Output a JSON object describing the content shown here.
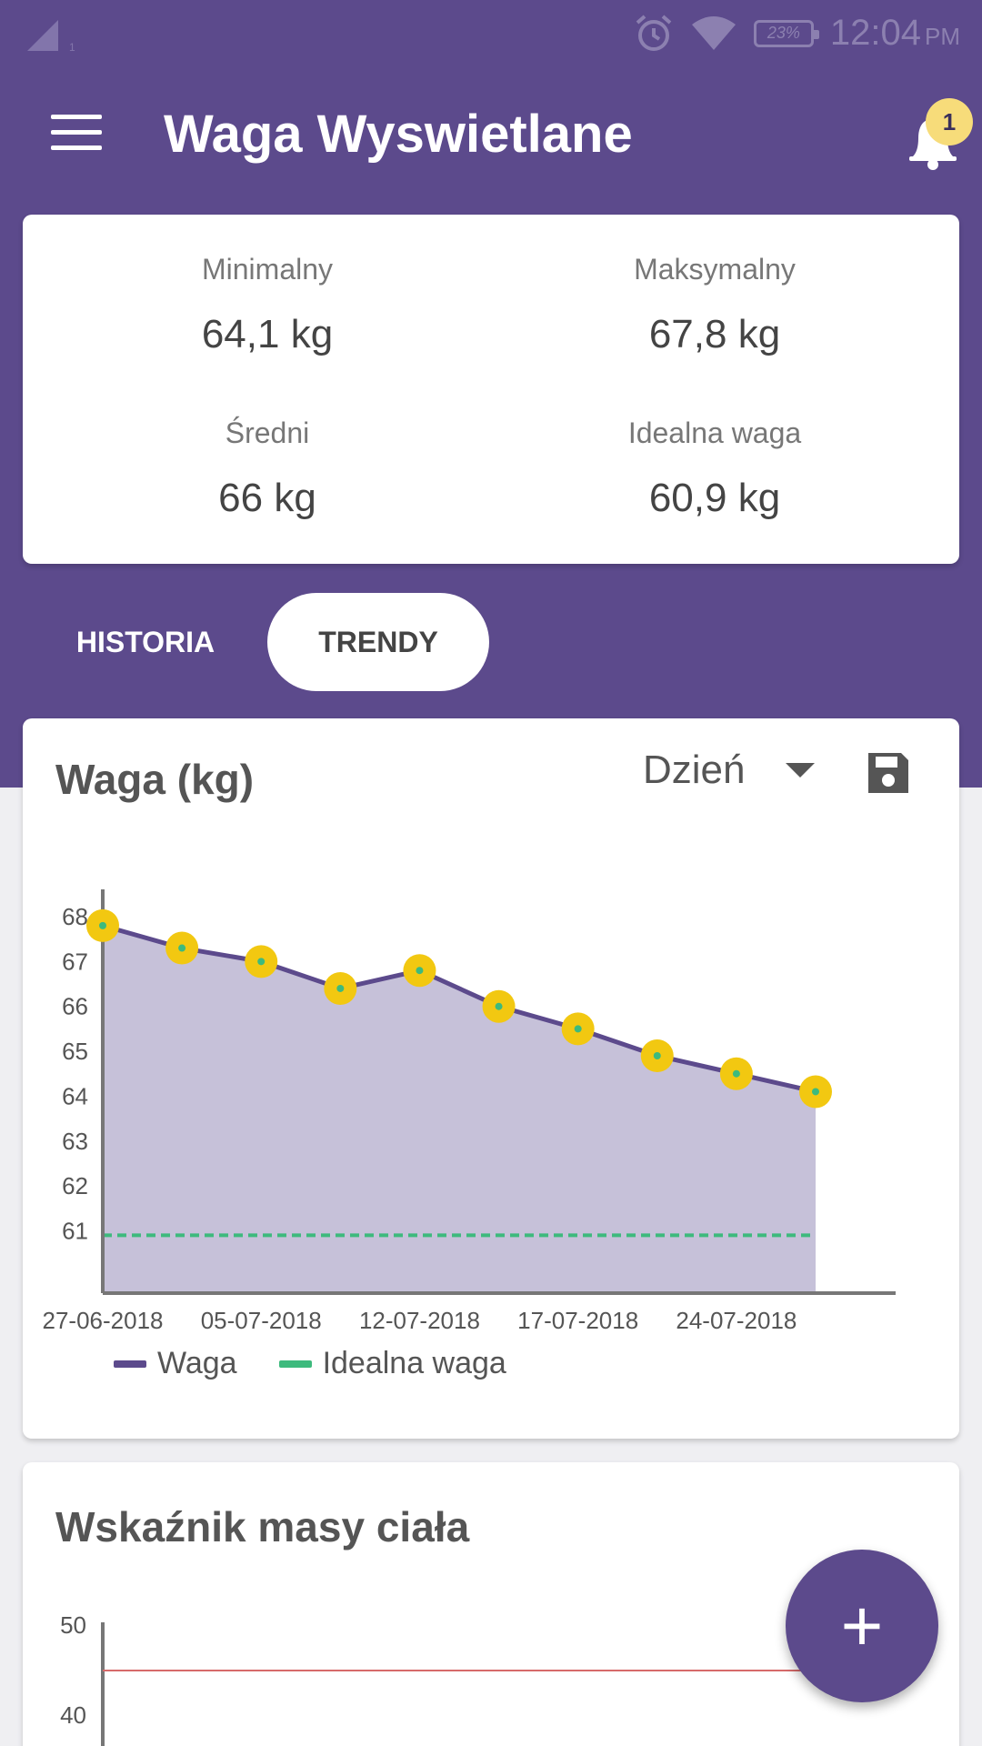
{
  "status_bar": {
    "battery": "23%",
    "time": "12:04",
    "ampm": "PM",
    "signal_sub": "1"
  },
  "app_bar": {
    "title": "Waga Wyswietlane",
    "notification_count": "1"
  },
  "stats": {
    "min_label": "Minimalny",
    "min_value": "64,1 kg",
    "max_label": "Maksymalny",
    "max_value": "67,8 kg",
    "avg_label": "Średni",
    "avg_value": "66 kg",
    "ideal_label": "Idealna waga",
    "ideal_value": "60,9 kg"
  },
  "tabs": [
    {
      "label": "HISTORIA",
      "active": false
    },
    {
      "label": "TRENDY",
      "active": true
    }
  ],
  "weight_card": {
    "title": "Waga (kg)",
    "period": "Dzień"
  },
  "bmi_card": {
    "title": "Wskaźnik masy ciała",
    "y_ticks": [
      "50",
      "40"
    ],
    "line_color": "#d66a6a"
  },
  "colors": {
    "primary": "#5c4a8c",
    "point": "#f2c811",
    "ideal": "#3dba7d",
    "fill": "#c6c1d9"
  },
  "chart_data": {
    "type": "line",
    "y_ticks": [
      "68",
      "67",
      "66",
      "65",
      "64",
      "63",
      "62",
      "61"
    ],
    "x_tick_labels": [
      "27-06-2018",
      "05-07-2018",
      "12-07-2018",
      "17-07-2018",
      "24-07-2018"
    ],
    "x_tick_indices": [
      0,
      2,
      4,
      6,
      8
    ],
    "series": [
      {
        "name": "Waga",
        "values": [
          67.8,
          67.3,
          67.0,
          66.4,
          66.8,
          66.0,
          65.5,
          64.9,
          64.5,
          64.1
        ]
      },
      {
        "name": "Idealna waga",
        "values": [
          60.9,
          60.9,
          60.9,
          60.9,
          60.9,
          60.9,
          60.9,
          60.9,
          60.9,
          60.9
        ]
      }
    ],
    "ylim": [
      60.3,
      68.0
    ],
    "legend": "bottom-left",
    "grid": false
  },
  "fab": {
    "label": "+"
  }
}
